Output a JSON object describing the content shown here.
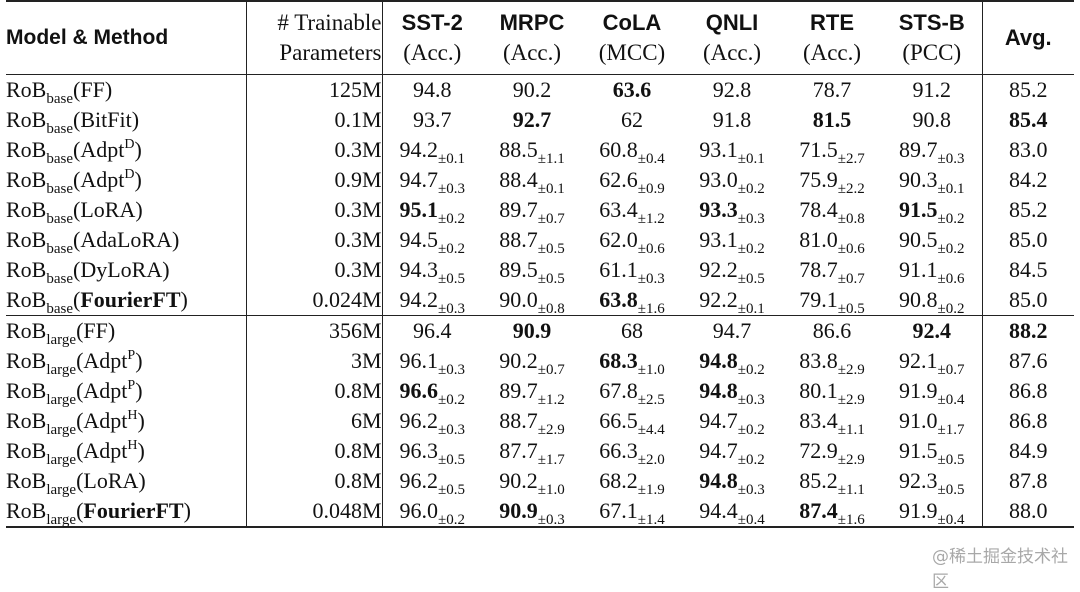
{
  "header": {
    "model_label": "Model & Method",
    "params_label_line1": "# Trainable",
    "params_label_line2": "Parameters",
    "metrics": [
      {
        "name": "SST-2",
        "metric": "(Acc.)"
      },
      {
        "name": "MRPC",
        "metric": "(Acc.)"
      },
      {
        "name": "CoLA",
        "metric": "(MCC)"
      },
      {
        "name": "QNLI",
        "metric": "(Acc.)"
      },
      {
        "name": "RTE",
        "metric": "(Acc.)"
      },
      {
        "name": "STS-B",
        "metric": "(PCC)"
      }
    ],
    "avg_label": "Avg."
  },
  "groups": [
    {
      "rows": [
        {
          "model": "RoB",
          "size": "base",
          "method": "FF",
          "method_bold": false,
          "sup": "",
          "params": "125M",
          "cells": [
            {
              "v": "94.8",
              "s": "",
              "b": false
            },
            {
              "v": "90.2",
              "s": "",
              "b": false
            },
            {
              "v": "63.6",
              "s": "",
              "b": true
            },
            {
              "v": "92.8",
              "s": "",
              "b": false
            },
            {
              "v": "78.7",
              "s": "",
              "b": false
            },
            {
              "v": "91.2",
              "s": "",
              "b": false
            }
          ],
          "avg": {
            "v": "85.2",
            "b": false
          }
        },
        {
          "model": "RoB",
          "size": "base",
          "method": "BitFit",
          "method_bold": false,
          "sup": "",
          "params": "0.1M",
          "cells": [
            {
              "v": "93.7",
              "s": "",
              "b": false
            },
            {
              "v": "92.7",
              "s": "",
              "b": true
            },
            {
              "v": "62",
              "s": "",
              "b": false
            },
            {
              "v": "91.8",
              "s": "",
              "b": false
            },
            {
              "v": "81.5",
              "s": "",
              "b": true
            },
            {
              "v": "90.8",
              "s": "",
              "b": false
            }
          ],
          "avg": {
            "v": "85.4",
            "b": true
          }
        },
        {
          "model": "RoB",
          "size": "base",
          "method": "Adpt",
          "method_bold": false,
          "sup": "D",
          "params": "0.3M",
          "cells": [
            {
              "v": "94.2",
              "s": "±0.1",
              "b": false
            },
            {
              "v": "88.5",
              "s": "±1.1",
              "b": false
            },
            {
              "v": "60.8",
              "s": "±0.4",
              "b": false
            },
            {
              "v": "93.1",
              "s": "±0.1",
              "b": false
            },
            {
              "v": "71.5",
              "s": "±2.7",
              "b": false
            },
            {
              "v": "89.7",
              "s": "±0.3",
              "b": false
            }
          ],
          "avg": {
            "v": "83.0",
            "b": false
          }
        },
        {
          "model": "RoB",
          "size": "base",
          "method": "Adpt",
          "method_bold": false,
          "sup": "D",
          "params": "0.9M",
          "cells": [
            {
              "v": "94.7",
              "s": "±0.3",
              "b": false
            },
            {
              "v": "88.4",
              "s": "±0.1",
              "b": false
            },
            {
              "v": "62.6",
              "s": "±0.9",
              "b": false
            },
            {
              "v": "93.0",
              "s": "±0.2",
              "b": false
            },
            {
              "v": "75.9",
              "s": "±2.2",
              "b": false
            },
            {
              "v": "90.3",
              "s": "±0.1",
              "b": false
            }
          ],
          "avg": {
            "v": "84.2",
            "b": false
          }
        },
        {
          "model": "RoB",
          "size": "base",
          "method": "LoRA",
          "method_bold": false,
          "sup": "",
          "params": "0.3M",
          "cells": [
            {
              "v": "95.1",
              "s": "±0.2",
              "b": true
            },
            {
              "v": "89.7",
              "s": "±0.7",
              "b": false
            },
            {
              "v": "63.4",
              "s": "±1.2",
              "b": false
            },
            {
              "v": "93.3",
              "s": "±0.3",
              "b": true
            },
            {
              "v": "78.4",
              "s": "±0.8",
              "b": false
            },
            {
              "v": "91.5",
              "s": "±0.2",
              "b": true
            }
          ],
          "avg": {
            "v": "85.2",
            "b": false
          }
        },
        {
          "model": "RoB",
          "size": "base",
          "method": "AdaLoRA",
          "method_bold": false,
          "sup": "",
          "params": "0.3M",
          "cells": [
            {
              "v": "94.5",
              "s": "±0.2",
              "b": false
            },
            {
              "v": "88.7",
              "s": "±0.5",
              "b": false
            },
            {
              "v": "62.0",
              "s": "±0.6",
              "b": false
            },
            {
              "v": "93.1",
              "s": "±0.2",
              "b": false
            },
            {
              "v": "81.0",
              "s": "±0.6",
              "b": false
            },
            {
              "v": "90.5",
              "s": "±0.2",
              "b": false
            }
          ],
          "avg": {
            "v": "85.0",
            "b": false
          }
        },
        {
          "model": "RoB",
          "size": "base",
          "method": "DyLoRA",
          "method_bold": false,
          "sup": "",
          "params": "0.3M",
          "cells": [
            {
              "v": "94.3",
              "s": "±0.5",
              "b": false
            },
            {
              "v": "89.5",
              "s": "±0.5",
              "b": false
            },
            {
              "v": "61.1",
              "s": "±0.3",
              "b": false
            },
            {
              "v": "92.2",
              "s": "±0.5",
              "b": false
            },
            {
              "v": "78.7",
              "s": "±0.7",
              "b": false
            },
            {
              "v": "91.1",
              "s": "±0.6",
              "b": false
            }
          ],
          "avg": {
            "v": "84.5",
            "b": false
          }
        },
        {
          "model": "RoB",
          "size": "base",
          "method": "FourierFT",
          "method_bold": true,
          "sup": "",
          "params": "0.024M",
          "cells": [
            {
              "v": "94.2",
              "s": "±0.3",
              "b": false
            },
            {
              "v": "90.0",
              "s": "±0.8",
              "b": false
            },
            {
              "v": "63.8",
              "s": "±1.6",
              "b": true
            },
            {
              "v": "92.2",
              "s": "±0.1",
              "b": false
            },
            {
              "v": "79.1",
              "s": "±0.5",
              "b": false
            },
            {
              "v": "90.8",
              "s": "±0.2",
              "b": false
            }
          ],
          "avg": {
            "v": "85.0",
            "b": false
          }
        }
      ]
    },
    {
      "rows": [
        {
          "model": "RoB",
          "size": "large",
          "method": "FF",
          "method_bold": false,
          "sup": "",
          "params": "356M",
          "cells": [
            {
              "v": "96.4",
              "s": "",
              "b": false
            },
            {
              "v": "90.9",
              "s": "",
              "b": true
            },
            {
              "v": "68",
              "s": "",
              "b": false
            },
            {
              "v": "94.7",
              "s": "",
              "b": false
            },
            {
              "v": "86.6",
              "s": "",
              "b": false
            },
            {
              "v": "92.4",
              "s": "",
              "b": true
            }
          ],
          "avg": {
            "v": "88.2",
            "b": true
          }
        },
        {
          "model": "RoB",
          "size": "large",
          "method": "Adpt",
          "method_bold": false,
          "sup": "P",
          "params": "3M",
          "cells": [
            {
              "v": "96.1",
              "s": "±0.3",
              "b": false
            },
            {
              "v": "90.2",
              "s": "±0.7",
              "b": false
            },
            {
              "v": "68.3",
              "s": "±1.0",
              "b": true
            },
            {
              "v": "94.8",
              "s": "±0.2",
              "b": true
            },
            {
              "v": "83.8",
              "s": "±2.9",
              "b": false
            },
            {
              "v": "92.1",
              "s": "±0.7",
              "b": false
            }
          ],
          "avg": {
            "v": "87.6",
            "b": false
          }
        },
        {
          "model": "RoB",
          "size": "large",
          "method": "Adpt",
          "method_bold": false,
          "sup": "P",
          "params": "0.8M",
          "cells": [
            {
              "v": "96.6",
              "s": "±0.2",
              "b": true
            },
            {
              "v": "89.7",
              "s": "±1.2",
              "b": false
            },
            {
              "v": "67.8",
              "s": "±2.5",
              "b": false
            },
            {
              "v": "94.8",
              "s": "±0.3",
              "b": true
            },
            {
              "v": "80.1",
              "s": "±2.9",
              "b": false
            },
            {
              "v": "91.9",
              "s": "±0.4",
              "b": false
            }
          ],
          "avg": {
            "v": "86.8",
            "b": false
          }
        },
        {
          "model": "RoB",
          "size": "large",
          "method": "Adpt",
          "method_bold": false,
          "sup": "H",
          "params": "6M",
          "cells": [
            {
              "v": "96.2",
              "s": "±0.3",
              "b": false
            },
            {
              "v": "88.7",
              "s": "±2.9",
              "b": false
            },
            {
              "v": "66.5",
              "s": "±4.4",
              "b": false
            },
            {
              "v": "94.7",
              "s": "±0.2",
              "b": false
            },
            {
              "v": "83.4",
              "s": "±1.1",
              "b": false
            },
            {
              "v": "91.0",
              "s": "±1.7",
              "b": false
            }
          ],
          "avg": {
            "v": "86.8",
            "b": false
          }
        },
        {
          "model": "RoB",
          "size": "large",
          "method": "Adpt",
          "method_bold": false,
          "sup": "H",
          "params": "0.8M",
          "cells": [
            {
              "v": "96.3",
              "s": "±0.5",
              "b": false
            },
            {
              "v": "87.7",
              "s": "±1.7",
              "b": false
            },
            {
              "v": "66.3",
              "s": "±2.0",
              "b": false
            },
            {
              "v": "94.7",
              "s": "±0.2",
              "b": false
            },
            {
              "v": "72.9",
              "s": "±2.9",
              "b": false
            },
            {
              "v": "91.5",
              "s": "±0.5",
              "b": false
            }
          ],
          "avg": {
            "v": "84.9",
            "b": false
          }
        },
        {
          "model": "RoB",
          "size": "large",
          "method": "LoRA",
          "method_bold": false,
          "sup": "",
          "params": "0.8M",
          "cells": [
            {
              "v": "96.2",
              "s": "±0.5",
              "b": false
            },
            {
              "v": "90.2",
              "s": "±1.0",
              "b": false
            },
            {
              "v": "68.2",
              "s": "±1.9",
              "b": false
            },
            {
              "v": "94.8",
              "s": "±0.3",
              "b": true
            },
            {
              "v": "85.2",
              "s": "±1.1",
              "b": false
            },
            {
              "v": "92.3",
              "s": "±0.5",
              "b": false
            }
          ],
          "avg": {
            "v": "87.8",
            "b": false
          }
        },
        {
          "model": "RoB",
          "size": "large",
          "method": "FourierFT",
          "method_bold": true,
          "sup": "",
          "params": "0.048M",
          "cells": [
            {
              "v": "96.0",
              "s": "±0.2",
              "b": false
            },
            {
              "v": "90.9",
              "s": "±0.3",
              "b": true
            },
            {
              "v": "67.1",
              "s": "±1.4",
              "b": false
            },
            {
              "v": "94.4",
              "s": "±0.4",
              "b": false
            },
            {
              "v": "87.4",
              "s": "±1.6",
              "b": true
            },
            {
              "v": "91.9",
              "s": "±0.4",
              "b": false
            }
          ],
          "avg": {
            "v": "88.0",
            "b": false
          }
        }
      ]
    }
  ],
  "watermark": "@稀土掘金技术社区"
}
